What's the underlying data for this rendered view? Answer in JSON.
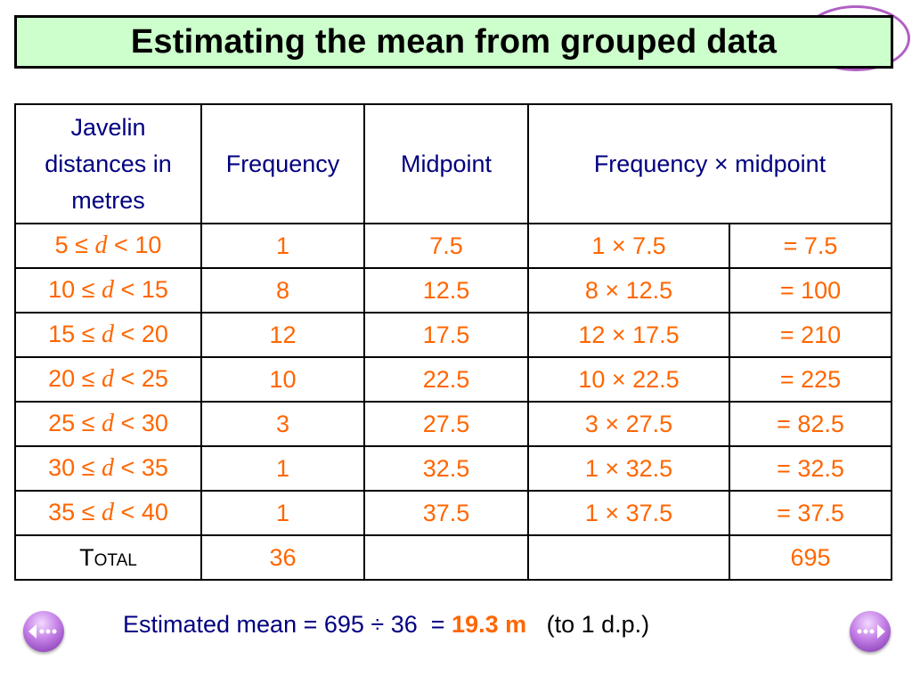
{
  "title": "Estimating the mean from grouped data",
  "table": {
    "headers": {
      "distance": "Javelin distances in metres",
      "frequency": "Frequency",
      "midpoint": "Midpoint",
      "product": "Frequency × midpoint"
    },
    "rows": [
      {
        "lo": "5",
        "hi": "10",
        "freq": "1",
        "mid": "7.5",
        "calc": "1 ×  7.5",
        "result": "= 7.5"
      },
      {
        "lo": "10",
        "hi": "15",
        "freq": "8",
        "mid": "12.5",
        "calc": "8 × 12.5",
        "result": "= 100"
      },
      {
        "lo": "15",
        "hi": "20",
        "freq": "12",
        "mid": "17.5",
        "calc": "12 × 17.5",
        "result": "= 210"
      },
      {
        "lo": "20",
        "hi": "25",
        "freq": "10",
        "mid": "22.5",
        "calc": "10 × 22.5",
        "result": "= 225"
      },
      {
        "lo": "25",
        "hi": "30",
        "freq": "3",
        "mid": "27.5",
        "calc": "3 × 27.5",
        "result": "= 82.5"
      },
      {
        "lo": "30",
        "hi": "35",
        "freq": "1",
        "mid": "32.5",
        "calc": "1 × 32.5",
        "result": "= 32.5"
      },
      {
        "lo": "35",
        "hi": "40",
        "freq": "1",
        "mid": "37.5",
        "calc": "1 × 37.5",
        "result": "= 37.5"
      }
    ],
    "le_symbol": "≤",
    "lt_symbol": "<",
    "variable": "d",
    "total": {
      "label": "Total",
      "freq": "36",
      "product": "695"
    }
  },
  "result": {
    "text": "Estimated mean = 695 ÷ 36  = ",
    "value": "19.3 m",
    "note": "   (to 1 d.p.)"
  },
  "colors": {
    "header_text": "#000080",
    "data_text": "#ff6600",
    "title_bg": "#ccffcc",
    "nav": "#b05fc4"
  },
  "icons": {
    "prev": "back-arrow-icon",
    "next": "forward-arrow-icon"
  }
}
